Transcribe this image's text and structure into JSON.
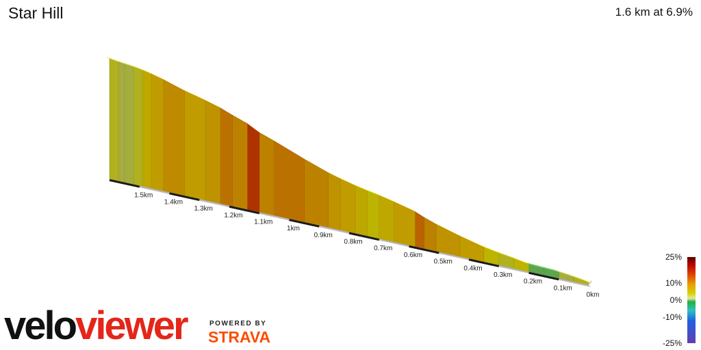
{
  "header": {
    "title": "Star Hill",
    "summary": "1.6 km at 6.9%"
  },
  "chart_data": {
    "type": "area",
    "subtype": "3d-elevation-profile",
    "x_unit": "km",
    "x_ticks": [
      {
        "value": 0,
        "label": "0km"
      },
      {
        "value": 0.1,
        "label": "0.1km"
      },
      {
        "value": 0.2,
        "label": "0.2km"
      },
      {
        "value": 0.3,
        "label": "0.3km"
      },
      {
        "value": 0.4,
        "label": "0.4km"
      },
      {
        "value": 0.5,
        "label": "0.5km"
      },
      {
        "value": 0.6,
        "label": "0.6km"
      },
      {
        "value": 0.7,
        "label": "0.7km"
      },
      {
        "value": 0.8,
        "label": "0.8km"
      },
      {
        "value": 0.9,
        "label": "0.9km"
      },
      {
        "value": 1.0,
        "label": "1km"
      },
      {
        "value": 1.1,
        "label": "1.1km"
      },
      {
        "value": 1.2,
        "label": "1.2km"
      },
      {
        "value": 1.3,
        "label": "1.3km"
      },
      {
        "value": 1.4,
        "label": "1.4km"
      },
      {
        "value": 1.5,
        "label": "1.5km"
      }
    ],
    "x_range": [
      0,
      1.6
    ],
    "segments": [
      {
        "x0": 0.0,
        "x1": 0.05,
        "gradient": 4
      },
      {
        "x0": 0.05,
        "x1": 0.1,
        "gradient": 3
      },
      {
        "x0": 0.1,
        "x1": 0.15,
        "gradient": 1
      },
      {
        "x0": 0.15,
        "x1": 0.2,
        "gradient": 1
      },
      {
        "x0": 0.2,
        "x1": 0.25,
        "gradient": 5
      },
      {
        "x0": 0.25,
        "x1": 0.3,
        "gradient": 4
      },
      {
        "x0": 0.3,
        "x1": 0.35,
        "gradient": 5
      },
      {
        "x0": 0.35,
        "x1": 0.43,
        "gradient": 7
      },
      {
        "x0": 0.43,
        "x1": 0.51,
        "gradient": 8
      },
      {
        "x0": 0.51,
        "x1": 0.55,
        "gradient": 10
      },
      {
        "x0": 0.55,
        "x1": 0.58,
        "gradient": 12
      },
      {
        "x0": 0.58,
        "x1": 0.65,
        "gradient": 7
      },
      {
        "x0": 0.65,
        "x1": 0.7,
        "gradient": 6
      },
      {
        "x0": 0.7,
        "x1": 0.74,
        "gradient": 5
      },
      {
        "x0": 0.74,
        "x1": 0.78,
        "gradient": 6
      },
      {
        "x0": 0.78,
        "x1": 0.83,
        "gradient": 7
      },
      {
        "x0": 0.83,
        "x1": 0.87,
        "gradient": 8
      },
      {
        "x0": 0.87,
        "x1": 0.95,
        "gradient": 10
      },
      {
        "x0": 0.95,
        "x1": 1.05,
        "gradient": 11
      },
      {
        "x0": 1.05,
        "x1": 1.1,
        "gradient": 10
      },
      {
        "x0": 1.1,
        "x1": 1.14,
        "gradient": 15
      },
      {
        "x0": 1.14,
        "x1": 1.19,
        "gradient": 10
      },
      {
        "x0": 1.19,
        "x1": 1.23,
        "gradient": 11
      },
      {
        "x0": 1.23,
        "x1": 1.28,
        "gradient": 8
      },
      {
        "x0": 1.28,
        "x1": 1.35,
        "gradient": 7
      },
      {
        "x0": 1.35,
        "x1": 1.42,
        "gradient": 9
      },
      {
        "x0": 1.42,
        "x1": 1.46,
        "gradient": 7
      },
      {
        "x0": 1.46,
        "x1": 1.49,
        "gradient": 6
      },
      {
        "x0": 1.49,
        "x1": 1.52,
        "gradient": 4
      },
      {
        "x0": 1.52,
        "x1": 1.55,
        "gradient": 3
      },
      {
        "x0": 1.55,
        "x1": 1.57,
        "gradient": 3
      },
      {
        "x0": 1.57,
        "x1": 1.6,
        "gradient": 4
      }
    ],
    "legend": {
      "title": "",
      "stops": [
        {
          "value": 25,
          "label": "25%"
        },
        {
          "value": 10,
          "label": "10%"
        },
        {
          "value": 0,
          "label": "0%"
        },
        {
          "value": -10,
          "label": "-10%"
        },
        {
          "value": -25,
          "label": "-25%"
        }
      ],
      "placement": "bottom-right"
    }
  },
  "branding": {
    "logo_part1": "velo",
    "logo_part2": "viewer",
    "powered_by": "POWERED BY",
    "strava": "STRAVA"
  }
}
